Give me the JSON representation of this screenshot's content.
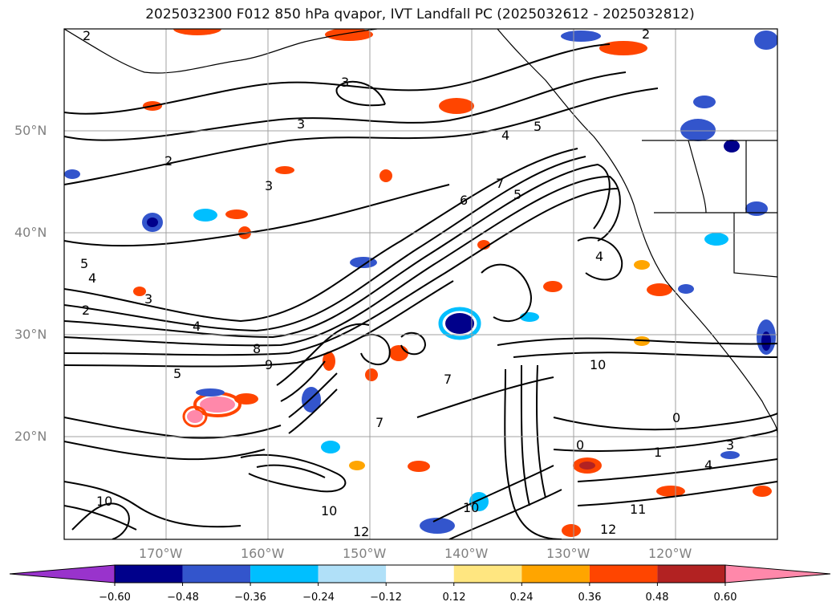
{
  "title": "2025032300 F012 850 hPa qvapor, IVT Landfall PC (2025032612 - 2025032812)",
  "lat_labels": [
    "50°N",
    "40°N",
    "30°N",
    "20°N"
  ],
  "lon_labels": [
    "170°W",
    "160°W",
    "150°W",
    "140°W",
    "130°W",
    "120°W"
  ],
  "colorbar": {
    "colors": [
      "#9933cc",
      "#00008b",
      "#3355cc",
      "#00bfff",
      "#b0e0f8",
      "#ffffff",
      "#ffe680",
      "#ffa500",
      "#ff4500",
      "#b22222",
      "#ff88aa"
    ],
    "ticks": [
      "−0.60",
      "−0.48",
      "−0.36",
      "−0.24",
      "−0.12",
      "0.12",
      "0.24",
      "0.36",
      "0.48",
      "0.60"
    ]
  },
  "contour_labels": [
    {
      "text": "2"
    },
    {
      "text": "3"
    },
    {
      "text": "2"
    },
    {
      "text": "3"
    },
    {
      "text": "3"
    },
    {
      "text": "5"
    },
    {
      "text": "4"
    },
    {
      "text": "3"
    },
    {
      "text": "2"
    },
    {
      "text": "4"
    },
    {
      "text": "5"
    },
    {
      "text": "4"
    },
    {
      "text": "6"
    },
    {
      "text": "7"
    },
    {
      "text": "5"
    },
    {
      "text": "4"
    },
    {
      "text": "8"
    },
    {
      "text": "9"
    },
    {
      "text": "10"
    },
    {
      "text": "10"
    },
    {
      "text": "10"
    },
    {
      "text": "12"
    },
    {
      "text": "12"
    },
    {
      "text": "11"
    },
    {
      "text": "10"
    },
    {
      "text": "0"
    },
    {
      "text": "0"
    },
    {
      "text": "1"
    },
    {
      "text": "4"
    },
    {
      "text": "3"
    },
    {
      "text": "12"
    },
    {
      "text": "7"
    },
    {
      "text": "7"
    },
    {
      "text": "5"
    },
    {
      "text": "2"
    }
  ]
}
